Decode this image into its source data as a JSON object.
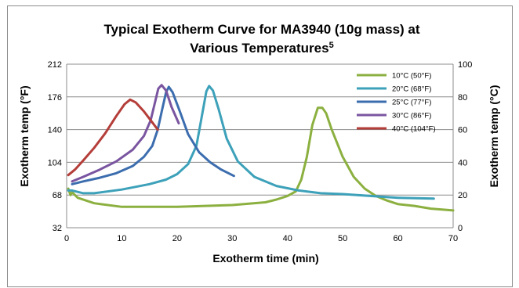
{
  "chart_data": {
    "type": "line",
    "title_line1": "Typical Exotherm Curve for MA3940 (10g mass) at",
    "title_line2": "Various Temperatures",
    "title_superscript": "5",
    "xlabel": "Exotherm time (min)",
    "ylabel_left": "Exotherm temp (°F)",
    "ylabel_right": "Exotherm temp (°C)",
    "xlim": [
      0,
      70
    ],
    "ylim_left": [
      32,
      212
    ],
    "ylim_right": [
      0,
      100
    ],
    "x_ticks": [
      "0",
      "10",
      "20",
      "30",
      "40",
      "50",
      "60",
      "70"
    ],
    "y_ticks_left": [
      "32",
      "68",
      "104",
      "140",
      "176",
      "212"
    ],
    "y_ticks_right": [
      "0",
      "20",
      "40",
      "60",
      "80",
      "100"
    ],
    "grid": true,
    "legend_position": "top-right",
    "series": [
      {
        "name": "10°C (50°F)",
        "color": "#8CB040",
        "points": [
          [
            0.3,
            75
          ],
          [
            0.7,
            68
          ],
          [
            1,
            71
          ],
          [
            2,
            65
          ],
          [
            5,
            59
          ],
          [
            10,
            55
          ],
          [
            20,
            55
          ],
          [
            30,
            57
          ],
          [
            36,
            60
          ],
          [
            38,
            63
          ],
          [
            40,
            67
          ],
          [
            41.5,
            72
          ],
          [
            42.5,
            85
          ],
          [
            43.5,
            110
          ],
          [
            44.5,
            145
          ],
          [
            45.5,
            164
          ],
          [
            46.3,
            164
          ],
          [
            47,
            158
          ],
          [
            48,
            140
          ],
          [
            50,
            110
          ],
          [
            52,
            88
          ],
          [
            54,
            75
          ],
          [
            56,
            67
          ],
          [
            58,
            62
          ],
          [
            60,
            58
          ],
          [
            63,
            56
          ],
          [
            66,
            53
          ],
          [
            70,
            51
          ]
        ]
      },
      {
        "name": "20°C (68°F)",
        "color": "#3DA1B9",
        "points": [
          [
            0.3,
            73
          ],
          [
            1,
            73
          ],
          [
            3,
            70
          ],
          [
            5,
            70
          ],
          [
            10,
            74
          ],
          [
            15,
            80
          ],
          [
            18,
            85
          ],
          [
            20,
            91
          ],
          [
            22,
            102
          ],
          [
            23.5,
            122
          ],
          [
            24.5,
            155
          ],
          [
            25.3,
            182
          ],
          [
            25.8,
            188
          ],
          [
            26.5,
            183
          ],
          [
            27.5,
            163
          ],
          [
            29,
            130
          ],
          [
            31,
            105
          ],
          [
            34,
            88
          ],
          [
            38,
            78
          ],
          [
            42,
            73
          ],
          [
            46,
            70
          ],
          [
            50,
            69
          ],
          [
            55,
            67
          ],
          [
            60,
            65
          ],
          [
            66.5,
            64
          ]
        ]
      },
      {
        "name": "25°C (77°F)",
        "color": "#3C6DAE",
        "points": [
          [
            1,
            80
          ],
          [
            3,
            83
          ],
          [
            6,
            87
          ],
          [
            9,
            92
          ],
          [
            12,
            100
          ],
          [
            14,
            110
          ],
          [
            15.5,
            122
          ],
          [
            16.5,
            140
          ],
          [
            17.3,
            162
          ],
          [
            18,
            181
          ],
          [
            18.5,
            187
          ],
          [
            19.2,
            181
          ],
          [
            20.5,
            160
          ],
          [
            22,
            135
          ],
          [
            24,
            115
          ],
          [
            26,
            104
          ],
          [
            28,
            96
          ],
          [
            30.3,
            89
          ]
        ]
      },
      {
        "name": "30°C (86°F)",
        "color": "#7A55A0",
        "points": [
          [
            1,
            83
          ],
          [
            3,
            88
          ],
          [
            6,
            96
          ],
          [
            9,
            105
          ],
          [
            12,
            118
          ],
          [
            14,
            133
          ],
          [
            15.2,
            150
          ],
          [
            16,
            170
          ],
          [
            16.6,
            185
          ],
          [
            17.2,
            189
          ],
          [
            18,
            183
          ],
          [
            19,
            165
          ],
          [
            20.3,
            147
          ]
        ]
      },
      {
        "name": "40°C (104°F)",
        "color": "#B43E3A",
        "points": [
          [
            0.3,
            90
          ],
          [
            1.5,
            96
          ],
          [
            3,
            106
          ],
          [
            5,
            120
          ],
          [
            7,
            136
          ],
          [
            9,
            155
          ],
          [
            10.5,
            168
          ],
          [
            11.5,
            173
          ],
          [
            12.5,
            170
          ],
          [
            14,
            160
          ],
          [
            15.5,
            148
          ],
          [
            16.5,
            140
          ]
        ]
      }
    ]
  }
}
